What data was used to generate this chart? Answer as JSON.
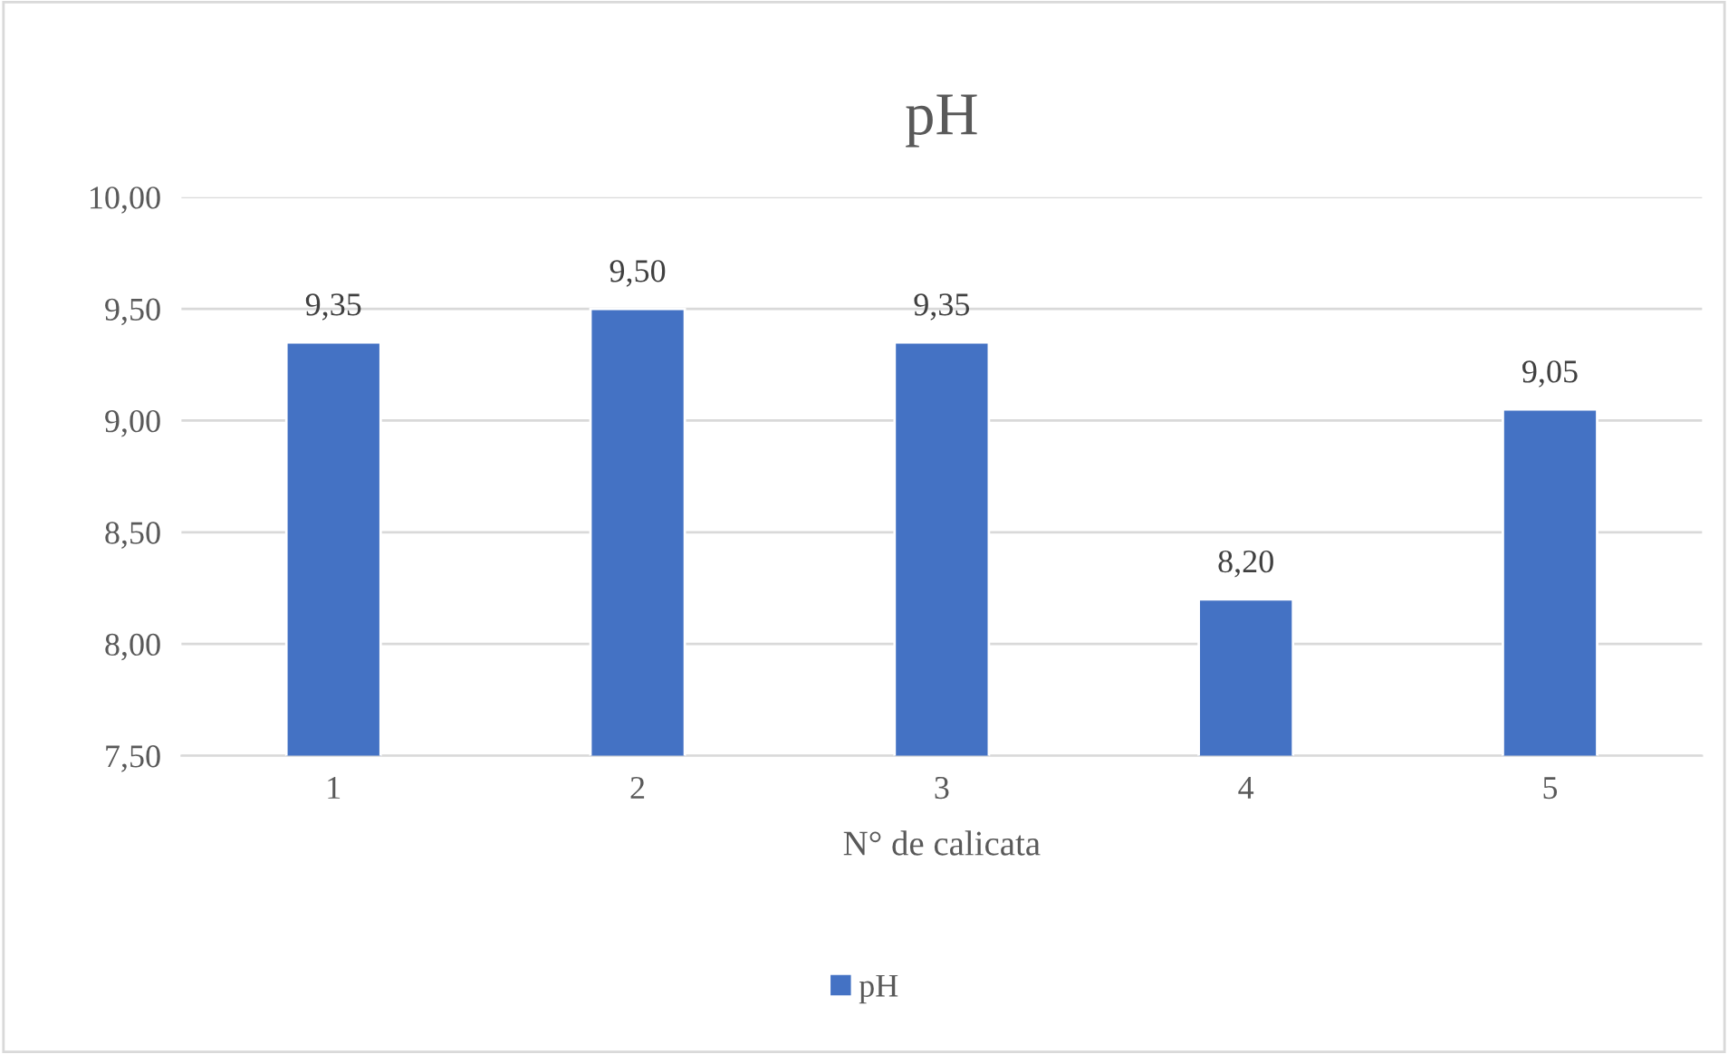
{
  "chart_data": {
    "type": "bar",
    "title": "pH",
    "xlabel": "N° de calicata",
    "categories": [
      "1",
      "2",
      "3",
      "4",
      "5"
    ],
    "series": [
      {
        "name": "pH",
        "color": "#4472c4",
        "values": [
          9.35,
          9.5,
          9.35,
          8.2,
          9.05
        ],
        "value_labels": [
          "9,35",
          "9,50",
          "9,35",
          "8,20",
          "9,05"
        ]
      }
    ],
    "ylim": [
      7.5,
      10
    ],
    "yticks": [
      {
        "value": 7.5,
        "label": "7,50"
      },
      {
        "value": 8,
        "label": "8,00"
      },
      {
        "value": 8.5,
        "label": "8,50"
      },
      {
        "value": 9,
        "label": "9,00"
      },
      {
        "value": 9.5,
        "label": "9,50"
      },
      {
        "value": 10,
        "label": "10,00"
      }
    ],
    "grid": "y",
    "legend": "bottom"
  }
}
